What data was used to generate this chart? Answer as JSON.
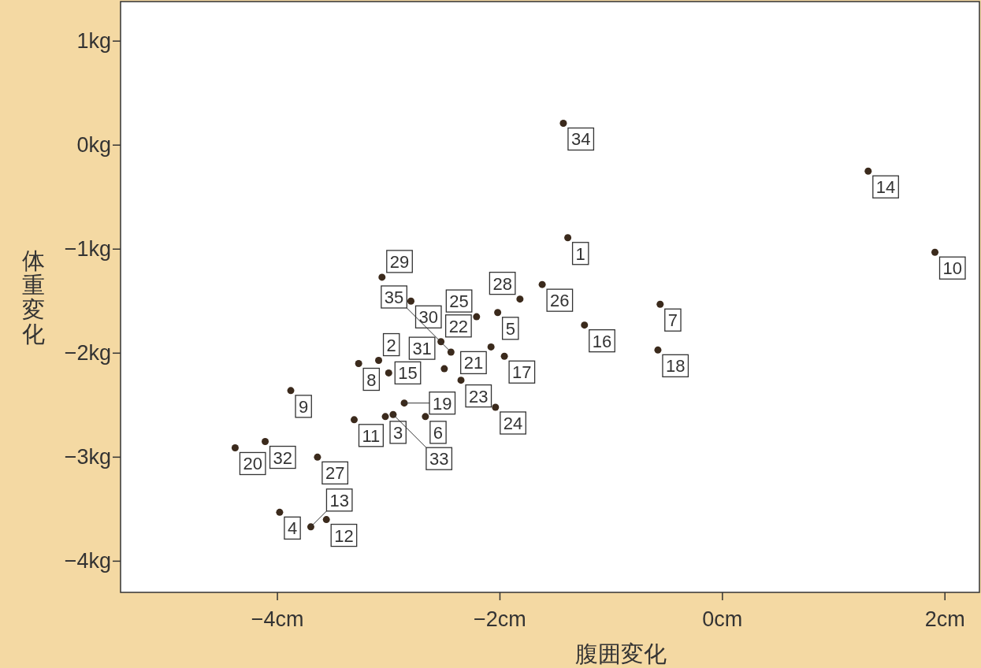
{
  "chart_data": {
    "type": "scatter",
    "xlabel": "腹囲変化",
    "ylabel": "体重変化",
    "x": [
      -1.39,
      -3.09,
      -3.03,
      -3.98,
      -2.02,
      -2.67,
      -0.56,
      -3.27,
      -3.88,
      1.91,
      -3.31,
      -3.56,
      -3.7,
      1.31,
      -3.0,
      -1.24,
      -1.96,
      -0.58,
      -2.86,
      -4.38,
      -2.08,
      -2.53,
      -2.35,
      -2.04,
      -2.21,
      -1.62,
      -3.64,
      -1.82,
      -3.06,
      -2.8,
      -2.5,
      -4.11,
      -2.96,
      -1.43,
      -2.44
    ],
    "values": [
      -0.89,
      -2.07,
      -2.61,
      -3.53,
      -1.61,
      -2.61,
      -1.53,
      -2.1,
      -2.36,
      -1.03,
      -2.64,
      -3.6,
      -3.67,
      -0.25,
      -2.19,
      -1.73,
      -2.03,
      -1.97,
      -2.48,
      -2.91,
      -1.94,
      -1.89,
      -2.26,
      -2.52,
      -1.65,
      -1.34,
      -3.0,
      -1.48,
      -1.27,
      -1.5,
      -2.15,
      -2.85,
      -2.59,
      0.21,
      -1.99
    ],
    "color": "#3b2a1c",
    "marker": "circle",
    "xlim": [
      -5.41,
      2.31
    ],
    "ylim": [
      -4.3,
      1.38
    ],
    "xticks": [
      {
        "value": -4,
        "label": "−4cm"
      },
      {
        "value": -2,
        "label": "−2cm"
      },
      {
        "value": 0,
        "label": "0cm"
      },
      {
        "value": 2,
        "label": "2cm"
      }
    ],
    "yticks": [
      {
        "value": 1,
        "label": "1kg"
      },
      {
        "value": 0,
        "label": "0kg"
      },
      {
        "value": -1,
        "label": "−1kg"
      },
      {
        "value": -2,
        "label": "−2kg"
      },
      {
        "value": -3,
        "label": "−3kg"
      },
      {
        "value": -4,
        "label": "−4kg"
      }
    ],
    "annotations": [
      {
        "text": "1",
        "x": -1.39,
        "y": -0.89
      },
      {
        "text": "2",
        "x": -3.09,
        "y": -2.07
      },
      {
        "text": "3",
        "x": -3.03,
        "y": -2.61
      },
      {
        "text": "4",
        "x": -3.98,
        "y": -3.53
      },
      {
        "text": "5",
        "x": -2.02,
        "y": -1.61
      },
      {
        "text": "6",
        "x": -2.67,
        "y": -2.61
      },
      {
        "text": "7",
        "x": -0.56,
        "y": -1.53
      },
      {
        "text": "8",
        "x": -3.27,
        "y": -2.1
      },
      {
        "text": "9",
        "x": -3.88,
        "y": -2.36
      },
      {
        "text": "10",
        "x": 1.91,
        "y": -1.03
      },
      {
        "text": "11",
        "x": -3.31,
        "y": -2.64
      },
      {
        "text": "12",
        "x": -3.56,
        "y": -3.6
      },
      {
        "text": "13",
        "x": -3.7,
        "y": -3.67
      },
      {
        "text": "14",
        "x": 1.31,
        "y": -0.25
      },
      {
        "text": "15",
        "x": -3.0,
        "y": -2.19
      },
      {
        "text": "16",
        "x": -1.24,
        "y": -1.73
      },
      {
        "text": "17",
        "x": -1.96,
        "y": -2.03
      },
      {
        "text": "18",
        "x": -0.58,
        "y": -1.97
      },
      {
        "text": "19",
        "x": -2.86,
        "y": -2.48
      },
      {
        "text": "20",
        "x": -4.38,
        "y": -2.91
      },
      {
        "text": "21",
        "x": -2.08,
        "y": -1.94
      },
      {
        "text": "22",
        "x": -2.53,
        "y": -1.89
      },
      {
        "text": "23",
        "x": -2.35,
        "y": -2.26
      },
      {
        "text": "24",
        "x": -2.04,
        "y": -2.52
      },
      {
        "text": "25",
        "x": -2.21,
        "y": -1.65
      },
      {
        "text": "26",
        "x": -1.62,
        "y": -1.34
      },
      {
        "text": "27",
        "x": -3.64,
        "y": -3.0
      },
      {
        "text": "28",
        "x": -1.82,
        "y": -1.48
      },
      {
        "text": "29",
        "x": -3.06,
        "y": -1.27
      },
      {
        "text": "30",
        "x": -2.8,
        "y": -1.5
      },
      {
        "text": "31",
        "x": -2.5,
        "y": -2.15
      },
      {
        "text": "32",
        "x": -4.11,
        "y": -2.85
      },
      {
        "text": "33",
        "x": -2.96,
        "y": -2.59
      },
      {
        "text": "34",
        "x": -1.43,
        "y": 0.21
      },
      {
        "text": "35",
        "x": -2.44,
        "y": -1.99
      }
    ]
  }
}
